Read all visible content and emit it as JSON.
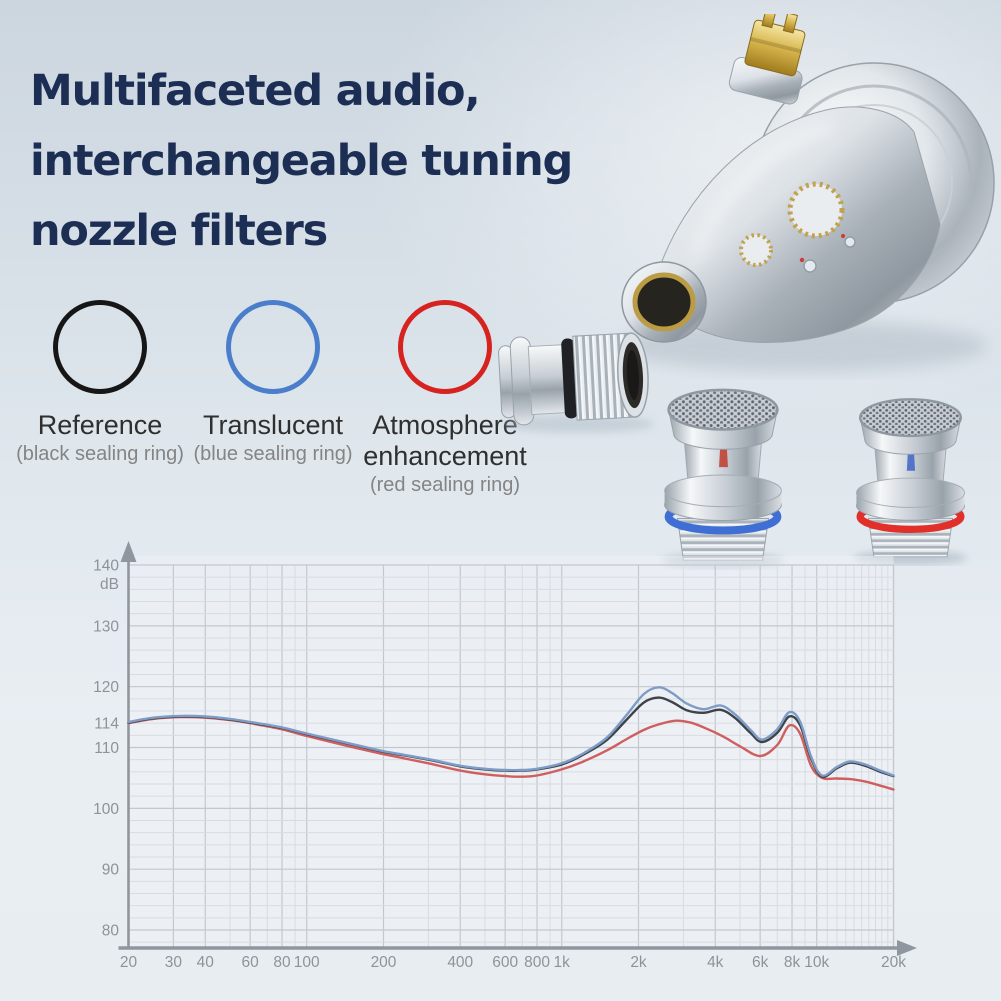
{
  "headline": {
    "line1": "Multifaceted audio,",
    "line2": "interchangeable tuning",
    "line3": "nozzle filters",
    "color": "#1d2e55"
  },
  "filter_legend": [
    {
      "title": "Reference",
      "subtitle": "(black sealing ring)",
      "ring_color": "#161616"
    },
    {
      "title": "Translucent",
      "subtitle": "(blue sealing ring)",
      "ring_color": "#4a7ecb"
    },
    {
      "title": "Atmosphere enhancement",
      "subtitle": "(red sealing ring)",
      "ring_color": "#d62320"
    }
  ],
  "images": {
    "earphone": "chrome-earphone-shell-with-gold-2pin-connector",
    "side_filter": "nozzle-filter-lying-black-sealing-ring",
    "blue_filter": "nozzle-filter-upright-blue-sealing-ring",
    "red_filter": "nozzle-filter-upright-red-sealing-ring"
  },
  "chart_data": {
    "type": "line",
    "title": "",
    "xlabel": "",
    "ylabel": "dB",
    "x_scale": "log",
    "xlim": [
      20,
      20000
    ],
    "ylim": [
      77,
      142
    ],
    "grid": "minor log-x, 2 dB y",
    "legend_position": "none",
    "tick_color": "#8d9399",
    "axis_color": "#8f969e",
    "x_ticks": [
      "20",
      "30",
      "40",
      "60",
      "80",
      "100",
      "200",
      "400",
      "600",
      "800",
      "1k",
      "2k",
      "4k",
      "6k",
      "8k",
      "10k",
      "20k"
    ],
    "x_tick_values": [
      20,
      30,
      40,
      60,
      80,
      100,
      200,
      400,
      600,
      800,
      1000,
      2000,
      4000,
      6000,
      8000,
      10000,
      20000
    ],
    "y_ticks": [
      140,
      130,
      120,
      114,
      110,
      100,
      90,
      80
    ],
    "y_unit": "dB",
    "series": [
      {
        "name": "Atmosphere enhancement (red sealing ring)",
        "color": "#cf5f5f",
        "points": [
          [
            20,
            114.0
          ],
          [
            25,
            114.7
          ],
          [
            32,
            115.0
          ],
          [
            40,
            114.9
          ],
          [
            50,
            114.5
          ],
          [
            60,
            114.0
          ],
          [
            80,
            113.0
          ],
          [
            100,
            111.9
          ],
          [
            150,
            110.1
          ],
          [
            200,
            108.9
          ],
          [
            300,
            107.4
          ],
          [
            400,
            106.2
          ],
          [
            500,
            105.6
          ],
          [
            600,
            105.3
          ],
          [
            700,
            105.2
          ],
          [
            800,
            105.4
          ],
          [
            1000,
            106.4
          ],
          [
            1200,
            107.6
          ],
          [
            1500,
            109.5
          ],
          [
            1800,
            111.4
          ],
          [
            2100,
            112.9
          ],
          [
            2400,
            113.8
          ],
          [
            2800,
            114.4
          ],
          [
            3200,
            114.1
          ],
          [
            3700,
            113.1
          ],
          [
            4300,
            111.8
          ],
          [
            5000,
            110.2
          ],
          [
            6000,
            108.6
          ],
          [
            7000,
            110.4
          ],
          [
            7800,
            113.6
          ],
          [
            8600,
            112.3
          ],
          [
            9500,
            107.0
          ],
          [
            10500,
            105.0
          ],
          [
            12000,
            104.9
          ],
          [
            13500,
            104.8
          ],
          [
            15500,
            104.4
          ],
          [
            17500,
            103.8
          ],
          [
            20000,
            103.1
          ]
        ]
      },
      {
        "name": "Reference (black sealing ring)",
        "color": "#3e434a",
        "points": [
          [
            20,
            114.1
          ],
          [
            25,
            114.8
          ],
          [
            32,
            115.1
          ],
          [
            40,
            115.0
          ],
          [
            50,
            114.6
          ],
          [
            60,
            114.1
          ],
          [
            80,
            113.2
          ],
          [
            100,
            112.2
          ],
          [
            150,
            110.5
          ],
          [
            200,
            109.3
          ],
          [
            300,
            108.0
          ],
          [
            400,
            106.9
          ],
          [
            500,
            106.4
          ],
          [
            600,
            106.2
          ],
          [
            700,
            106.2
          ],
          [
            800,
            106.4
          ],
          [
            1000,
            107.2
          ],
          [
            1200,
            108.7
          ],
          [
            1500,
            111.2
          ],
          [
            1800,
            114.6
          ],
          [
            2100,
            117.4
          ],
          [
            2400,
            118.2
          ],
          [
            2700,
            117.5
          ],
          [
            3100,
            116.1
          ],
          [
            3600,
            115.7
          ],
          [
            4200,
            116.2
          ],
          [
            4800,
            114.8
          ],
          [
            5500,
            112.4
          ],
          [
            6100,
            110.9
          ],
          [
            7000,
            112.4
          ],
          [
            7800,
            115.1
          ],
          [
            8600,
            113.7
          ],
          [
            9500,
            108.2
          ],
          [
            10500,
            105.2
          ],
          [
            12000,
            106.6
          ],
          [
            13500,
            107.5
          ],
          [
            15500,
            107.0
          ],
          [
            17500,
            106.1
          ],
          [
            20000,
            105.3
          ]
        ]
      },
      {
        "name": "Translucent (blue sealing ring)",
        "color": "#7e9cc6",
        "points": [
          [
            20,
            114.2
          ],
          [
            25,
            114.9
          ],
          [
            32,
            115.2
          ],
          [
            40,
            115.1
          ],
          [
            50,
            114.7
          ],
          [
            60,
            114.2
          ],
          [
            80,
            113.3
          ],
          [
            100,
            112.3
          ],
          [
            150,
            110.6
          ],
          [
            200,
            109.4
          ],
          [
            300,
            108.1
          ],
          [
            400,
            107.0
          ],
          [
            500,
            106.5
          ],
          [
            600,
            106.3
          ],
          [
            700,
            106.3
          ],
          [
            800,
            106.5
          ],
          [
            1000,
            107.4
          ],
          [
            1200,
            108.9
          ],
          [
            1500,
            111.6
          ],
          [
            1800,
            115.4
          ],
          [
            2100,
            118.8
          ],
          [
            2400,
            119.9
          ],
          [
            2700,
            119.0
          ],
          [
            3100,
            117.2
          ],
          [
            3600,
            116.3
          ],
          [
            4200,
            116.9
          ],
          [
            4800,
            115.4
          ],
          [
            5500,
            112.9
          ],
          [
            6100,
            111.3
          ],
          [
            7000,
            113.0
          ],
          [
            7800,
            115.8
          ],
          [
            8600,
            114.3
          ],
          [
            9500,
            108.5
          ],
          [
            10500,
            105.4
          ],
          [
            12000,
            106.8
          ],
          [
            13500,
            107.7
          ],
          [
            15500,
            107.2
          ],
          [
            17500,
            106.3
          ],
          [
            20000,
            105.4
          ]
        ]
      }
    ]
  }
}
